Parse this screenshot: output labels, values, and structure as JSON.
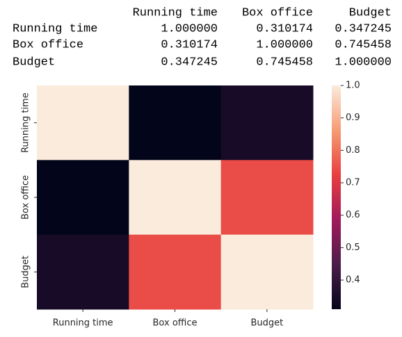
{
  "table": {
    "columns": [
      "Running time",
      "Box office",
      "Budget"
    ],
    "rows": [
      [
        "Running time",
        "1.000000",
        "0.310174",
        "0.347245"
      ],
      [
        "Box office",
        "0.310174",
        "1.000000",
        "0.745458"
      ],
      [
        "Budget",
        "0.347245",
        "0.745458",
        "1.000000"
      ]
    ]
  },
  "chart_data": {
    "type": "heatmap",
    "categories": [
      "Running time",
      "Box office",
      "Budget"
    ],
    "values": [
      [
        1.0,
        0.310174,
        0.347245
      ],
      [
        0.310174,
        1.0,
        0.745458
      ],
      [
        0.347245,
        0.745458,
        1.0
      ]
    ],
    "colorbar_lim": [
      0.310174,
      1.0
    ],
    "colorbar_ticks": [
      0.4,
      0.5,
      0.6,
      0.7,
      0.8,
      0.9,
      {
        "value": 1.0,
        "label": "1.0"
      }
    ],
    "colormap": [
      "#03051a",
      "#4c1d4b",
      "#a11a5b",
      "#e83f3f",
      "#f69c73",
      "#faebdd"
    ]
  }
}
